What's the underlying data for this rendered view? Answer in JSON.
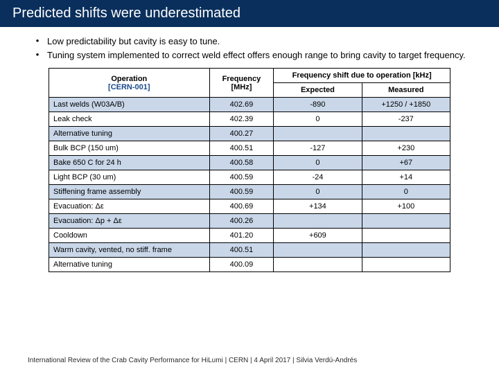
{
  "title": "Predicted shifts were underestimated",
  "bullets": [
    "Low predictability but cavity is easy to tune.",
    "Tuning system implemented to correct weld effect offers enough range to bring cavity to target frequency."
  ],
  "table": {
    "head": {
      "operation": "Operation",
      "operation_sub": "[CERN-001]",
      "freq": "Frequency",
      "freq_sub": "[MHz]",
      "shift_group": "Frequency shift due to operation [kHz]",
      "expected": "Expected",
      "measured": "Measured"
    },
    "rows": [
      {
        "op": "Last welds (W03A/B)",
        "freq": "402.69",
        "exp": "-890",
        "meas": "+1250 / +1850"
      },
      {
        "op": "Leak check",
        "freq": "402.39",
        "exp": "0",
        "meas": "-237"
      },
      {
        "op": "Alternative tuning",
        "freq": "400.27",
        "exp": "",
        "meas": ""
      },
      {
        "op": "Bulk BCP (150 um)",
        "freq": "400.51",
        "exp": "-127",
        "meas": "+230"
      },
      {
        "op": "Bake 650 C for 24 h",
        "freq": "400.58",
        "exp": "0",
        "meas": "+67"
      },
      {
        "op": "Light BCP (30 um)",
        "freq": "400.59",
        "exp": "-24",
        "meas": "+14"
      },
      {
        "op": "Stiffening frame assembly",
        "freq": "400.59",
        "exp": "0",
        "meas": "0"
      },
      {
        "op": "Evacuation: Δε",
        "freq": "400.69",
        "exp": "+134",
        "meas": "+100"
      },
      {
        "op": "Evacuation: Δp + Δε",
        "freq": "400.26",
        "exp": "",
        "meas": ""
      },
      {
        "op": "Cooldown",
        "freq": "401.20",
        "exp": "+609",
        "meas": ""
      },
      {
        "op": "Warm cavity, vented, no stiff. frame",
        "freq": "400.51",
        "exp": "",
        "meas": ""
      },
      {
        "op": "Alternative tuning",
        "freq": "400.09",
        "exp": "",
        "meas": ""
      }
    ],
    "col_widths": {
      "op": "40%",
      "freq": "16%",
      "exp": "22%",
      "meas": "22%"
    }
  },
  "footer": "International Review of the Crab Cavity Performance for HiLumi | CERN | 4 April 2017 | Silvia Verdú-Andrés",
  "colors": {
    "title_bg": "#0a2f5c",
    "zebra_a": "#c9d7e9",
    "zebra_b": "#ffffff",
    "sub_text": "#1a4a8a"
  }
}
